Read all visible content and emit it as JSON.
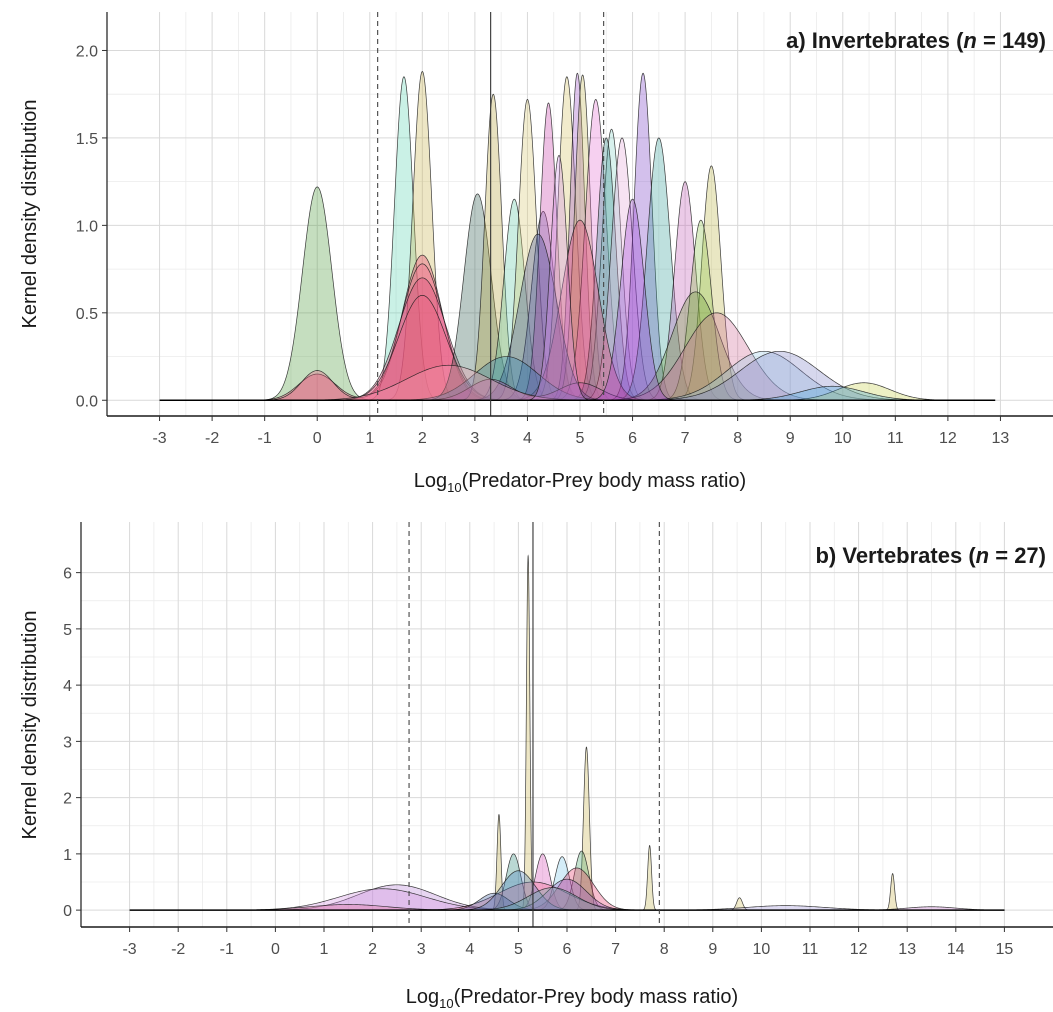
{
  "chart_data": [
    {
      "type": "area",
      "panel_title": {
        "prefix": "a) Invertebrates (",
        "n_symbol": "n",
        "equals": " = ",
        "n_value": "149",
        "suffix": ")"
      },
      "xlabel": {
        "prefix": "Log",
        "subscript": "10",
        "rest": "(Predator-Prey body mass ratio)"
      },
      "ylabel": "Kernel density distribution",
      "xlim": [
        -4,
        14
      ],
      "ylim": [
        -0.09,
        2.22
      ],
      "x_ticks": [
        -3,
        -2,
        -1,
        0,
        1,
        2,
        3,
        4,
        5,
        6,
        7,
        8,
        9,
        10,
        11,
        12,
        13
      ],
      "y_ticks": [
        0.0,
        0.5,
        1.0,
        1.5,
        2.0
      ],
      "y_tick_labels": [
        "0.0",
        "0.5",
        "1.0",
        "1.5",
        "2.0"
      ],
      "grid": true,
      "median_line": 3.3,
      "quantile_lines": [
        1.15,
        5.45
      ],
      "baseline_range": [
        -3,
        12.9
      ],
      "series": [
        {
          "peaks": [
            [
              0,
              1.22,
              0.28
            ]
          ],
          "color": "#4e9a3e"
        },
        {
          "peaks": [
            [
              1.65,
              1.85,
              0.18
            ]
          ],
          "color": "#5fd3b4"
        },
        {
          "peaks": [
            [
              2.0,
              1.88,
              0.18
            ]
          ],
          "color": "#c9b44f"
        },
        {
          "peaks": [
            [
              2.0,
              0.83,
              0.38
            ],
            [
              0,
              0.15,
              0.35
            ]
          ],
          "color": "#e8386a"
        },
        {
          "peaks": [
            [
              2.0,
              0.78,
              0.4
            ],
            [
              0,
              0.17,
              0.3
            ]
          ],
          "color": "#f06289"
        },
        {
          "peaks": [
            [
              2.0,
              0.7,
              0.45
            ]
          ],
          "color": "#d94072"
        },
        {
          "peaks": [
            [
              2.0,
              0.6,
              0.45
            ]
          ],
          "color": "#ee5e7e"
        },
        {
          "peaks": [
            [
              3.05,
              1.18,
              0.26
            ]
          ],
          "color": "#2f5a4f"
        },
        {
          "peaks": [
            [
              3.35,
              1.75,
              0.16
            ]
          ],
          "color": "#b5a33c"
        },
        {
          "peaks": [
            [
              3.75,
              1.15,
              0.2
            ]
          ],
          "color": "#62c7a7"
        },
        {
          "peaks": [
            [
              4.0,
              1.72,
              0.17
            ]
          ],
          "color": "#d9c772"
        },
        {
          "peaks": [
            [
              4.3,
              1.08,
              0.22
            ]
          ],
          "color": "#5a6aa8"
        },
        {
          "peaks": [
            [
              4.4,
              1.7,
              0.16
            ]
          ],
          "color": "#c73fa9"
        },
        {
          "peaks": [
            [
              4.75,
              1.85,
              0.17
            ]
          ],
          "color": "#d4c263"
        },
        {
          "peaks": [
            [
              4.95,
              1.87,
              0.14
            ]
          ],
          "color": "#9a4fc6"
        },
        {
          "peaks": [
            [
              5.05,
              1.86,
              0.15
            ]
          ],
          "color": "#c2b555"
        },
        {
          "peaks": [
            [
              5.3,
              1.72,
              0.2
            ]
          ],
          "color": "#e56fd1"
        },
        {
          "peaks": [
            [
              5.6,
              1.55,
              0.18
            ]
          ],
          "color": "#8ad6c9"
        },
        {
          "peaks": [
            [
              5.5,
              1.5,
              0.18
            ]
          ],
          "color": "#2f8a8a"
        },
        {
          "peaks": [
            [
              5.8,
              1.5,
              0.2
            ]
          ],
          "color": "#e3a8d9"
        },
        {
          "peaks": [
            [
              6.2,
              1.87,
              0.17
            ]
          ],
          "color": "#7a3fc4"
        },
        {
          "peaks": [
            [
              6.5,
              1.5,
              0.22
            ]
          ],
          "color": "#3aa29a"
        },
        {
          "peaks": [
            [
              7.0,
              1.25,
              0.2
            ]
          ],
          "color": "#c25fb7"
        },
        {
          "peaks": [
            [
              7.5,
              1.34,
              0.18
            ]
          ],
          "color": "#bdb54a"
        },
        {
          "peaks": [
            [
              7.3,
              1.03,
              0.2
            ]
          ],
          "color": "#8bc34a"
        },
        {
          "peaks": [
            [
              7.2,
              0.62,
              0.45
            ]
          ],
          "color": "#6c9b3a"
        },
        {
          "peaks": [
            [
              5.0,
              1.03,
              0.35
            ]
          ],
          "color": "#e23a66"
        },
        {
          "peaks": [
            [
              4.2,
              0.95,
              0.35
            ]
          ],
          "color": "#3b4a8f"
        },
        {
          "peaks": [
            [
              3.6,
              0.25,
              0.6
            ]
          ],
          "color": "#2b7fb0"
        },
        {
          "peaks": [
            [
              7.6,
              0.5,
              0.6
            ]
          ],
          "color": "#d06e98"
        },
        {
          "peaks": [
            [
              8.5,
              0.28,
              0.7
            ]
          ],
          "color": "#9ccbe6"
        },
        {
          "peaks": [
            [
              8.8,
              0.28,
              0.75
            ]
          ],
          "color": "#8486c9"
        },
        {
          "peaks": [
            [
              10.4,
              0.1,
              0.5
            ]
          ],
          "color": "#c8d14f"
        },
        {
          "peaks": [
            [
              9.8,
              0.08,
              0.6
            ]
          ],
          "color": "#4aa3d6"
        },
        {
          "peaks": [
            [
              5.0,
              0.1,
              0.4
            ],
            [
              3.3,
              0.12,
              0.4
            ]
          ],
          "color": "#b64fa8"
        },
        {
          "peaks": [
            [
              2.5,
              0.2,
              0.8
            ]
          ],
          "color": "#f59bb0"
        },
        {
          "peaks": [
            [
              6.0,
              1.15,
              0.22
            ]
          ],
          "color": "#9b40d6"
        },
        {
          "peaks": [
            [
              4.6,
              1.4,
              0.16
            ]
          ],
          "color": "#d18ee8"
        }
      ]
    },
    {
      "type": "area",
      "panel_title": {
        "prefix": "b) Vertebrates (",
        "n_symbol": "n",
        "equals": " = ",
        "n_value": "27",
        "suffix": ")"
      },
      "xlabel": {
        "prefix": "Log",
        "subscript": "10",
        "rest": "(Predator-Prey body mass ratio)"
      },
      "ylabel": "Kernel density distribution",
      "xlim": [
        -4,
        16
      ],
      "ylim": [
        -0.3,
        6.9
      ],
      "x_ticks": [
        -3,
        -2,
        -1,
        0,
        1,
        2,
        3,
        4,
        5,
        6,
        7,
        8,
        9,
        10,
        11,
        12,
        13,
        14,
        15
      ],
      "y_ticks": [
        0,
        1,
        2,
        3,
        4,
        5,
        6
      ],
      "y_tick_labels": [
        "0",
        "1",
        "2",
        "3",
        "4",
        "5",
        "6"
      ],
      "grid": true,
      "median_line": 5.3,
      "quantile_lines": [
        2.75,
        7.9
      ],
      "baseline_range": [
        -3,
        15
      ],
      "series": [
        {
          "peaks": [
            [
              2.5,
              0.45,
              0.8
            ]
          ],
          "color": "#b77fd6"
        },
        {
          "peaks": [
            [
              2.2,
              0.38,
              0.9
            ]
          ],
          "color": "#d28ee0"
        },
        {
          "peaks": [
            [
              5.2,
              6.3,
              0.035
            ]
          ],
          "color": "#c9b44f"
        },
        {
          "peaks": [
            [
              6.4,
              2.9,
              0.06
            ]
          ],
          "color": "#c9b44f"
        },
        {
          "peaks": [
            [
              4.6,
              1.7,
              0.04
            ]
          ],
          "color": "#b5a33c"
        },
        {
          "peaks": [
            [
              7.7,
              1.15,
              0.04
            ]
          ],
          "color": "#c2b555"
        },
        {
          "peaks": [
            [
              12.7,
              0.65,
              0.04
            ]
          ],
          "color": "#c9b44f"
        },
        {
          "peaks": [
            [
              9.55,
              0.22,
              0.06
            ]
          ],
          "color": "#d4c263"
        },
        {
          "peaks": [
            [
              4.9,
              1.0,
              0.15
            ]
          ],
          "color": "#2f8a7a"
        },
        {
          "peaks": [
            [
              5.5,
              1.0,
              0.15
            ]
          ],
          "color": "#d84fb8"
        },
        {
          "peaks": [
            [
              5.9,
              0.95,
              0.15
            ]
          ],
          "color": "#7cc8ea"
        },
        {
          "peaks": [
            [
              6.3,
              1.05,
              0.15
            ]
          ],
          "color": "#4aa36a"
        },
        {
          "peaks": [
            [
              6.2,
              0.75,
              0.35
            ]
          ],
          "color": "#e8386a"
        },
        {
          "peaks": [
            [
              5.3,
              0.5,
              0.7
            ]
          ],
          "color": "#f0628a"
        },
        {
          "peaks": [
            [
              4.5,
              0.3,
              0.3
            ]
          ],
          "color": "#3b5a9f"
        },
        {
          "peaks": [
            [
              5.0,
              0.7,
              0.35
            ]
          ],
          "color": "#4a7fc0"
        },
        {
          "peaks": [
            [
              6.0,
              0.55,
              0.4
            ]
          ],
          "color": "#9b5fc6"
        },
        {
          "peaks": [
            [
              5.7,
              0.4,
              0.5
            ]
          ],
          "color": "#5fb4a8"
        },
        {
          "peaks": [
            [
              1.5,
              0.1,
              0.8
            ]
          ],
          "color": "#e06c9c"
        },
        {
          "peaks": [
            [
              10.5,
              0.08,
              0.8
            ]
          ],
          "color": "#9b8fd6"
        },
        {
          "peaks": [
            [
              13.5,
              0.06,
              0.5
            ]
          ],
          "color": "#c06cc9"
        }
      ]
    }
  ]
}
